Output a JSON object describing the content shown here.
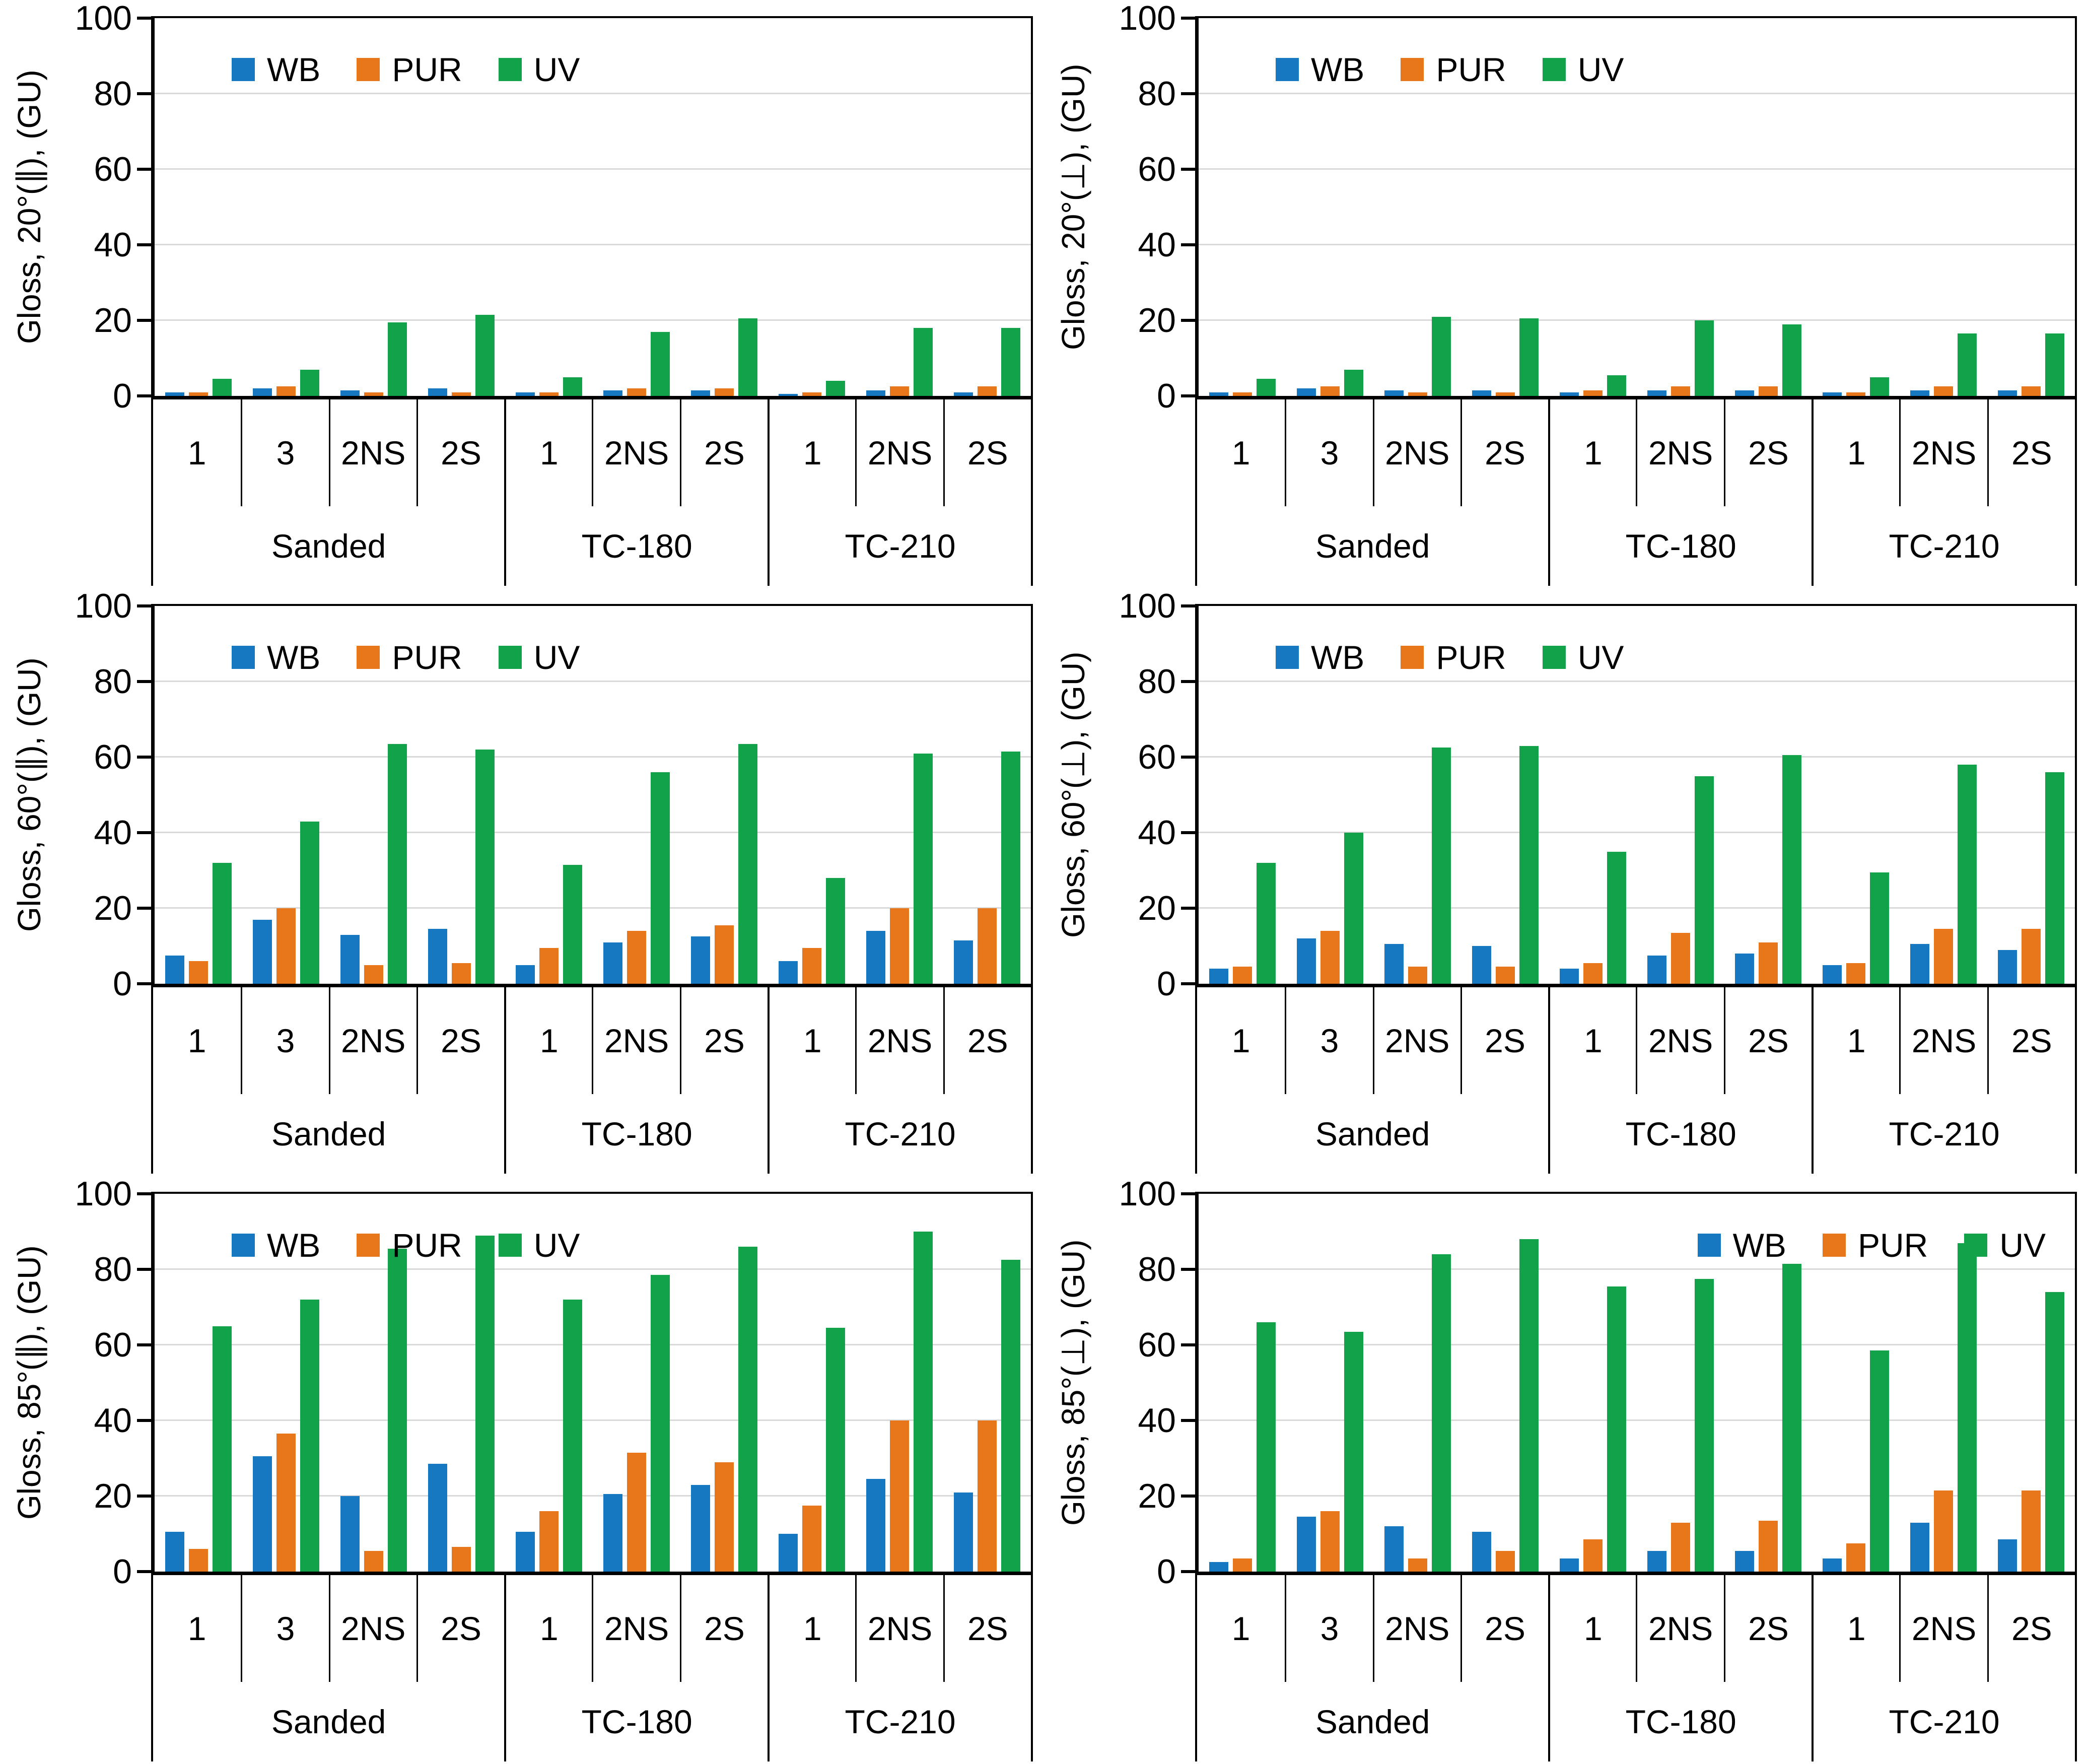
{
  "page": {
    "background": "#FFFFFF"
  },
  "colors": {
    "WB": "#1778C2",
    "PUR": "#E8761B",
    "UV": "#11A24A",
    "gridline": "#D9D9D9",
    "axis": "#000000"
  },
  "chart_data": [
    {
      "type": "bar",
      "ylabel": "Gloss, 20°(∥), (GU)",
      "ylim": [
        0,
        100
      ],
      "yticks": [
        0,
        20,
        40,
        60,
        80,
        100
      ],
      "legend_position": "top-left",
      "legend_labels": [
        "WB",
        "PUR",
        "UV"
      ],
      "groups": [
        {
          "label": "Sanded",
          "categories": [
            "1",
            "3",
            "2NS",
            "2S"
          ]
        },
        {
          "label": "TC-180",
          "categories": [
            "1",
            "2NS",
            "2S"
          ]
        },
        {
          "label": "TC-210",
          "categories": [
            "1",
            "2NS",
            "2S"
          ]
        }
      ],
      "series": [
        {
          "name": "WB",
          "values": [
            1,
            2,
            1.5,
            2,
            1,
            1.5,
            1.5,
            0.5,
            1.5,
            1
          ]
        },
        {
          "name": "PUR",
          "values": [
            1,
            2.5,
            1,
            1,
            1,
            2,
            2,
            1,
            2.5,
            2.5
          ]
        },
        {
          "name": "UV",
          "values": [
            4.5,
            7,
            19.5,
            21.5,
            5,
            17,
            20.5,
            4,
            18,
            18
          ]
        }
      ]
    },
    {
      "type": "bar",
      "ylabel": "Gloss, 20°(⊥), (GU)",
      "ylim": [
        0,
        100
      ],
      "yticks": [
        0,
        20,
        40,
        60,
        80,
        100
      ],
      "legend_position": "top-left",
      "legend_labels": [
        "WB",
        "PUR",
        "UV"
      ],
      "groups": [
        {
          "label": "Sanded",
          "categories": [
            "1",
            "3",
            "2NS",
            "2S"
          ]
        },
        {
          "label": "TC-180",
          "categories": [
            "1",
            "2NS",
            "2S"
          ]
        },
        {
          "label": "TC-210",
          "categories": [
            "1",
            "2NS",
            "2S"
          ]
        }
      ],
      "series": [
        {
          "name": "WB",
          "values": [
            1,
            2,
            1.5,
            1.5,
            1,
            1.5,
            1.5,
            1,
            1.5,
            1.5
          ]
        },
        {
          "name": "PUR",
          "values": [
            1,
            2.5,
            1,
            1,
            1.5,
            2.5,
            2.5,
            1,
            2.5,
            2.5
          ]
        },
        {
          "name": "UV",
          "values": [
            4.5,
            7,
            21,
            20.5,
            5.5,
            20,
            19,
            5,
            16.5,
            16.5
          ]
        }
      ]
    },
    {
      "type": "bar",
      "ylabel": "Gloss, 60°(∥), (GU)",
      "ylim": [
        0,
        100
      ],
      "yticks": [
        0,
        20,
        40,
        60,
        80,
        100
      ],
      "legend_position": "top-left",
      "legend_labels": [
        "WB",
        "PUR",
        "UV"
      ],
      "groups": [
        {
          "label": "Sanded",
          "categories": [
            "1",
            "3",
            "2NS",
            "2S"
          ]
        },
        {
          "label": "TC-180",
          "categories": [
            "1",
            "2NS",
            "2S"
          ]
        },
        {
          "label": "TC-210",
          "categories": [
            "1",
            "2NS",
            "2S"
          ]
        }
      ],
      "series": [
        {
          "name": "WB",
          "values": [
            7.5,
            17,
            13,
            14.5,
            5,
            11,
            12.5,
            6,
            14,
            11.5
          ]
        },
        {
          "name": "PUR",
          "values": [
            6,
            20,
            5,
            5.5,
            9.5,
            14,
            15.5,
            9.5,
            20,
            20
          ]
        },
        {
          "name": "UV",
          "values": [
            32,
            43,
            63.5,
            62,
            31.5,
            56,
            63.5,
            28,
            61,
            61.5
          ]
        }
      ]
    },
    {
      "type": "bar",
      "ylabel": "Gloss, 60°(⊥), (GU)",
      "ylim": [
        0,
        100
      ],
      "yticks": [
        0,
        20,
        40,
        60,
        80,
        100
      ],
      "legend_position": "top-left",
      "legend_labels": [
        "WB",
        "PUR",
        "UV"
      ],
      "groups": [
        {
          "label": "Sanded",
          "categories": [
            "1",
            "3",
            "2NS",
            "2S"
          ]
        },
        {
          "label": "TC-180",
          "categories": [
            "1",
            "2NS",
            "2S"
          ]
        },
        {
          "label": "TC-210",
          "categories": [
            "1",
            "2NS",
            "2S"
          ]
        }
      ],
      "series": [
        {
          "name": "WB",
          "values": [
            4,
            12,
            10.5,
            10,
            4,
            7.5,
            8,
            5,
            10.5,
            9
          ]
        },
        {
          "name": "PUR",
          "values": [
            4.5,
            14,
            4.5,
            4.5,
            5.5,
            13.5,
            11,
            5.5,
            14.5,
            14.5
          ]
        },
        {
          "name": "UV",
          "values": [
            32,
            40,
            62.5,
            63,
            35,
            55,
            60.5,
            29.5,
            58,
            56
          ]
        }
      ]
    },
    {
      "type": "bar",
      "ylabel": "Gloss, 85°(∥), (GU)",
      "ylim": [
        0,
        100
      ],
      "yticks": [
        0,
        20,
        40,
        60,
        80,
        100
      ],
      "legend_position": "top-left",
      "legend_labels": [
        "WB",
        "PUR",
        "UV"
      ],
      "groups": [
        {
          "label": "Sanded",
          "categories": [
            "1",
            "3",
            "2NS",
            "2S"
          ]
        },
        {
          "label": "TC-180",
          "categories": [
            "1",
            "2NS",
            "2S"
          ]
        },
        {
          "label": "TC-210",
          "categories": [
            "1",
            "2NS",
            "2S"
          ]
        }
      ],
      "series": [
        {
          "name": "WB",
          "values": [
            10.5,
            30.5,
            20,
            28.5,
            10.5,
            20.5,
            23,
            10,
            24.5,
            21
          ]
        },
        {
          "name": "PUR",
          "values": [
            6,
            36.5,
            5.5,
            6.5,
            16,
            31.5,
            29,
            17.5,
            40,
            40
          ]
        },
        {
          "name": "UV",
          "values": [
            65,
            72,
            85.5,
            89,
            72,
            78.5,
            86,
            64.5,
            90,
            82.5
          ]
        }
      ]
    },
    {
      "type": "bar",
      "ylabel": "Gloss, 85°(⊥), (GU)",
      "ylim": [
        0,
        100
      ],
      "yticks": [
        0,
        20,
        40,
        60,
        80,
        100
      ],
      "legend_position": "top-right",
      "legend_labels": [
        "WB",
        "PUR",
        "UV"
      ],
      "groups": [
        {
          "label": "Sanded",
          "categories": [
            "1",
            "3",
            "2NS",
            "2S"
          ]
        },
        {
          "label": "TC-180",
          "categories": [
            "1",
            "2NS",
            "2S"
          ]
        },
        {
          "label": "TC-210",
          "categories": [
            "1",
            "2NS",
            "2S"
          ]
        }
      ],
      "series": [
        {
          "name": "WB",
          "values": [
            2.5,
            14.5,
            12,
            10.5,
            3.5,
            5.5,
            5.5,
            3.5,
            13,
            8.5
          ]
        },
        {
          "name": "PUR",
          "values": [
            3.5,
            16,
            3.5,
            5.5,
            8.5,
            13,
            13.5,
            7.5,
            21.5,
            21.5
          ]
        },
        {
          "name": "UV",
          "values": [
            66,
            63.5,
            84,
            88,
            75.5,
            77.5,
            81.5,
            58.5,
            87,
            74
          ]
        }
      ]
    }
  ]
}
